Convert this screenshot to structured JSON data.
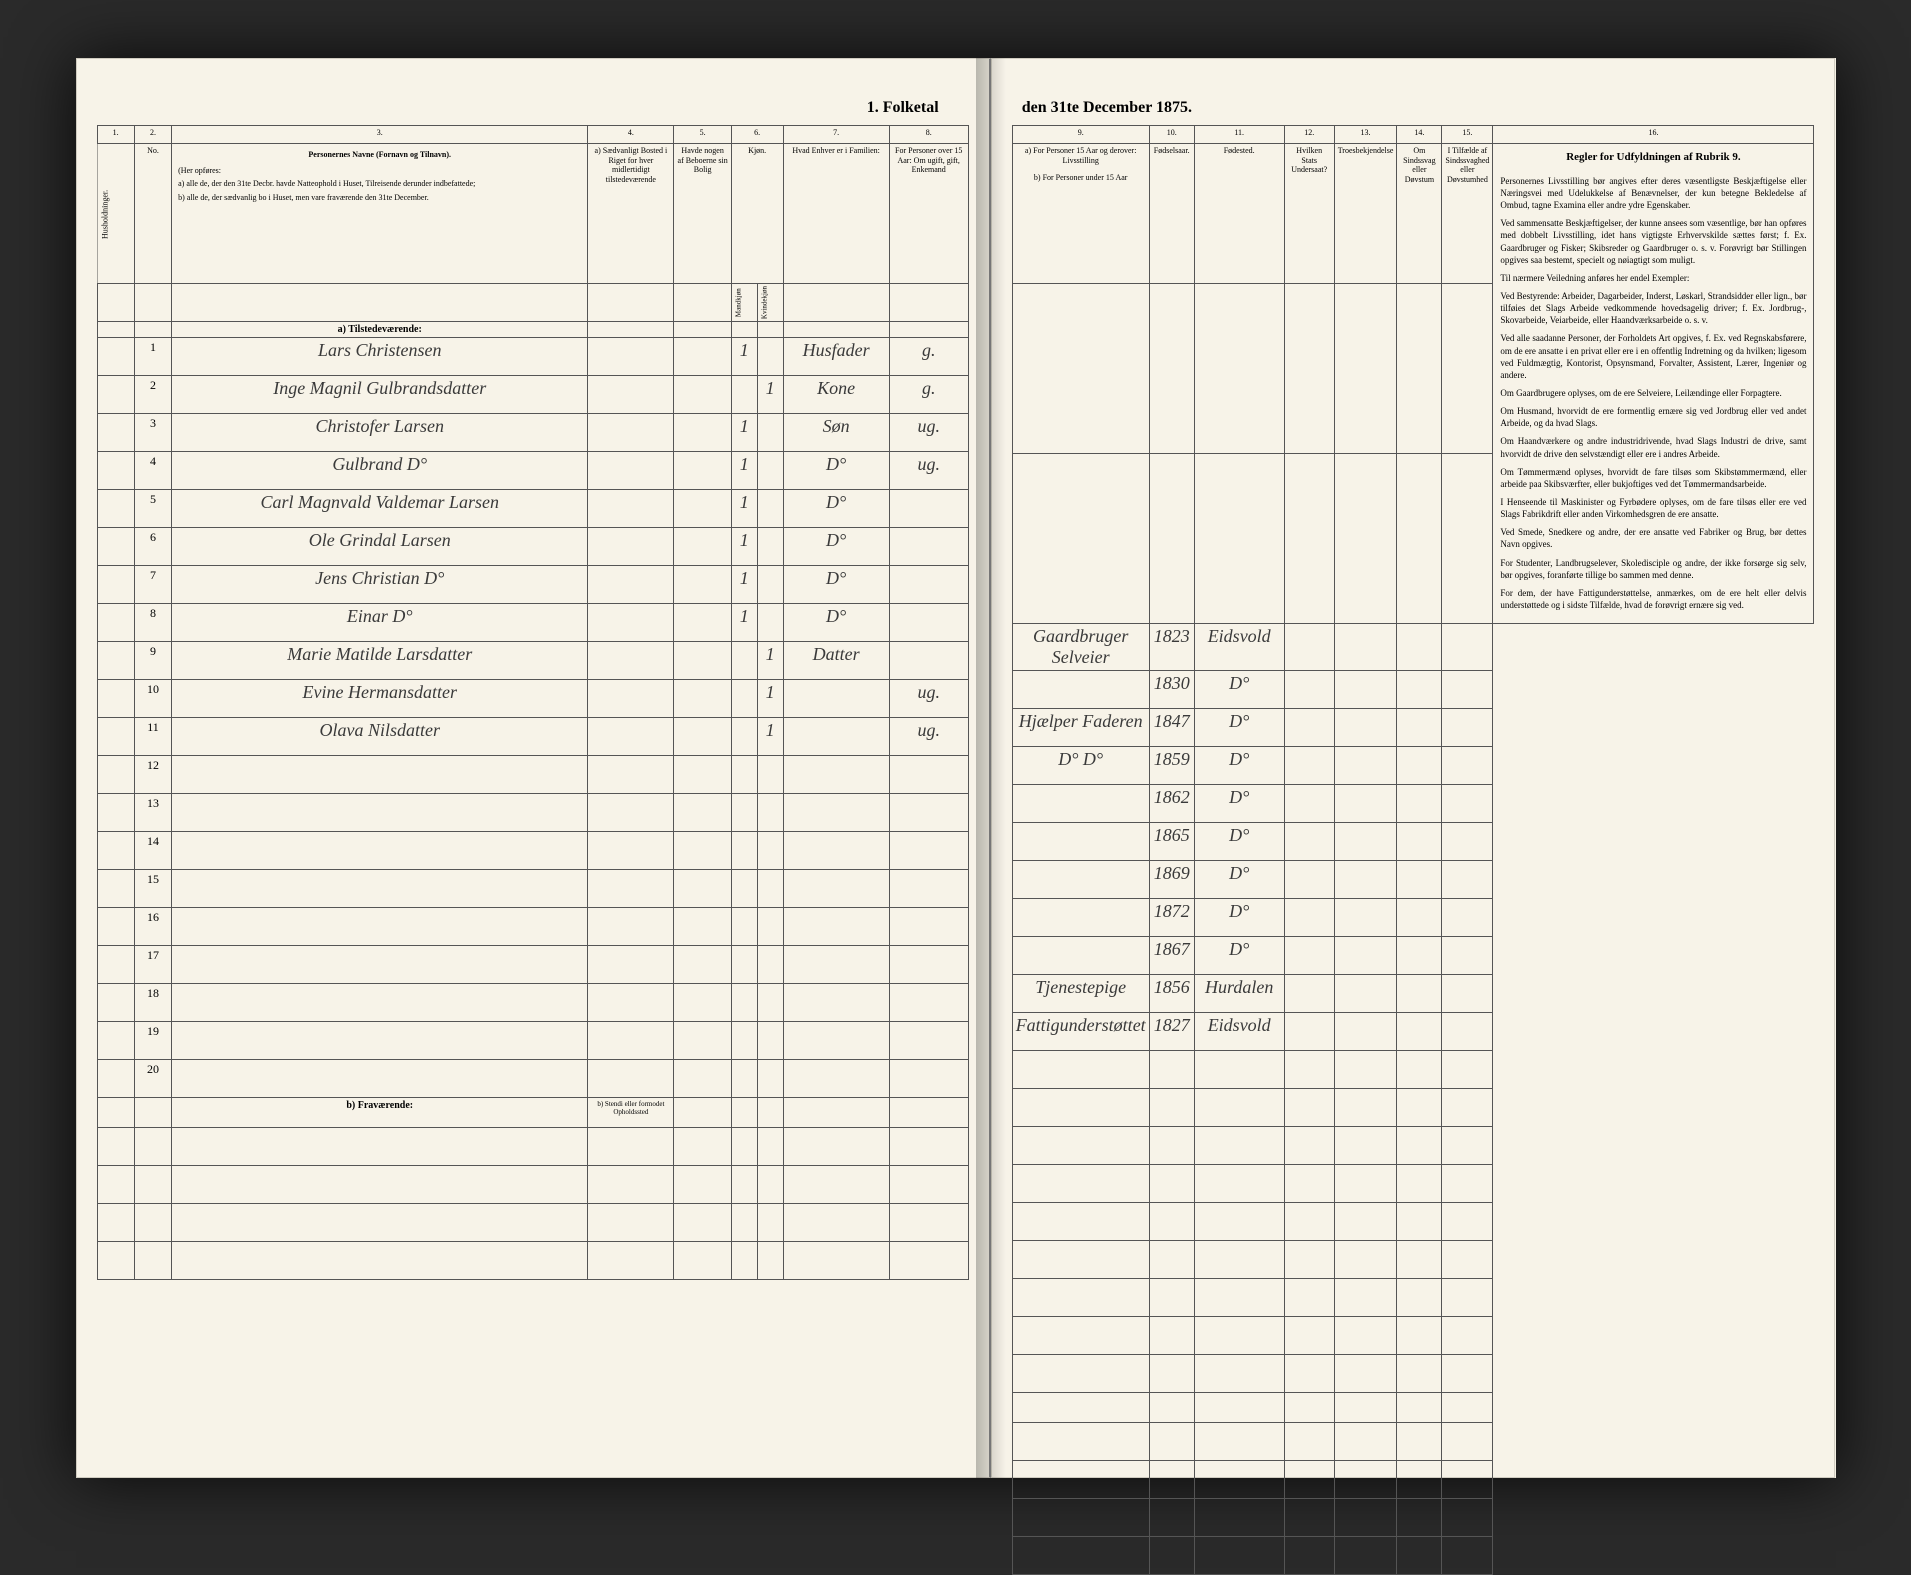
{
  "title_left": "1. Folketal",
  "title_right": "den 31te December 1875.",
  "columns_left": {
    "1": {
      "num": "1.",
      "label": "Husholdninger."
    },
    "2": {
      "num": "2.",
      "label": "No."
    },
    "3": {
      "num": "3.",
      "label": "Personernes Navne (Fornavn og Tilnavn).",
      "sub_a": "a) alle de, der den 31te Decbr. havde Natteophold i Huset, Tilreisende derunder indbefattede;",
      "sub_b": "b) alle de, der sædvanlig bo i Huset, men vare fraværende den 31te December."
    },
    "4": {
      "num": "4.",
      "label": "a) Sædvanligt Bosted i Riget for hver midlertidigt tilstedeværende"
    },
    "5": {
      "num": "5.",
      "label": "Havde nogen af Beboerne sin Bolig"
    },
    "6": {
      "num": "6.",
      "label": "Kjøn.",
      "sub1": "Mandkjøn",
      "sub2": "Kvindekjøn"
    },
    "7": {
      "num": "7.",
      "label": "Hvad Enhver er i Familien:"
    },
    "8": {
      "num": "8.",
      "label": "For Personer over 15 Aar: Om ugift, gift, Enkemand"
    }
  },
  "columns_right": {
    "9": {
      "num": "9.",
      "label": "a) For Personer 15 Aar og derover: Livsstilling",
      "sub": "b) For Personer under 15 Aar"
    },
    "10": {
      "num": "10.",
      "label": "Fødselsaar."
    },
    "11": {
      "num": "11.",
      "label": "Fødested."
    },
    "12": {
      "num": "12.",
      "label": "Hvilken Stats Undersaat?"
    },
    "13": {
      "num": "13.",
      "label": "Troesbekjendelse"
    },
    "14": {
      "num": "14.",
      "label": "Om Sindssvag eller Døvstum"
    },
    "15": {
      "num": "15.",
      "label": "I Tilfælde af Sindssvaghed eller Døvstumhed"
    },
    "16": {
      "num": "16.",
      "label": "Regler for Udfyldningen af Rubrik 9."
    }
  },
  "section_a": "a) Tilstedeværende:",
  "section_b": "b) Fraværende:",
  "section_b_col4": "b) Stendi eller formodet Opholdssted",
  "rows": [
    {
      "n": "1",
      "name": "Lars Christensen",
      "m": "1",
      "f": "",
      "rel": "Husfader",
      "stat": "g.",
      "occ": "Gaardbruger Selveier",
      "year": "1823",
      "place": "Eidsvold"
    },
    {
      "n": "2",
      "name": "Inge Magnil Gulbrandsdatter",
      "m": "",
      "f": "1",
      "rel": "Kone",
      "stat": "g.",
      "occ": "",
      "year": "1830",
      "place": "D°"
    },
    {
      "n": "3",
      "name": "Christofer Larsen",
      "m": "1",
      "f": "",
      "rel": "Søn",
      "stat": "ug.",
      "occ": "Hjælper Faderen",
      "year": "1847",
      "place": "D°"
    },
    {
      "n": "4",
      "name": "Gulbrand D°",
      "m": "1",
      "f": "",
      "rel": "D°",
      "stat": "ug.",
      "occ": "D°     D°",
      "year": "1859",
      "place": "D°"
    },
    {
      "n": "5",
      "name": "Carl Magnvald Valdemar Larsen",
      "m": "1",
      "f": "",
      "rel": "D°",
      "stat": "",
      "occ": "",
      "year": "1862",
      "place": "D°"
    },
    {
      "n": "6",
      "name": "Ole Grindal Larsen",
      "m": "1",
      "f": "",
      "rel": "D°",
      "stat": "",
      "occ": "",
      "year": "1865",
      "place": "D°"
    },
    {
      "n": "7",
      "name": "Jens Christian D°",
      "m": "1",
      "f": "",
      "rel": "D°",
      "stat": "",
      "occ": "",
      "year": "1869",
      "place": "D°"
    },
    {
      "n": "8",
      "name": "Einar D°",
      "m": "1",
      "f": "",
      "rel": "D°",
      "stat": "",
      "occ": "",
      "year": "1872",
      "place": "D°"
    },
    {
      "n": "9",
      "name": "Marie Matilde Larsdatter",
      "m": "",
      "f": "1",
      "rel": "Datter",
      "stat": "",
      "occ": "",
      "year": "1867",
      "place": "D°"
    },
    {
      "n": "10",
      "name": "Evine Hermansdatter",
      "m": "",
      "f": "1",
      "rel": "",
      "stat": "ug.",
      "occ": "Tjenestepige",
      "year": "1856",
      "place": "Hurdalen"
    },
    {
      "n": "11",
      "name": "Olava Nilsdatter",
      "m": "",
      "f": "1",
      "rel": "",
      "stat": "ug.",
      "occ": "Fattigunderstøttet",
      "year": "1827",
      "place": "Eidsvold"
    }
  ],
  "empty_rows_a": [
    "12",
    "13",
    "14",
    "15",
    "16",
    "17",
    "18",
    "19",
    "20"
  ],
  "instructions": {
    "header": "Personernes Livsstilling bør angives efter deres væsentligste Beskjæftigelse eller Næringsvei med Udelukkelse af Benævnelser, der kun betegne Bekledelse af Ombud, tagne Examina eller andre ydre Egenskaber.",
    "p1": "Ved sammensatte Beskjæftigelser, der kunne ansees som væsentlige, bør han opføres med dobbelt Livsstilling, idet hans vigtigste Erhvervskilde sættes først; f. Ex. Gaardbruger og Fisker; Skibsreder og Gaardbruger o. s. v. Forøvrigt bør Stillingen opgives saa bestemt, specielt og nøiagtigt som muligt.",
    "p2": "Til nærmere Veiledning anføres her endel Exempler:",
    "p3": "Ved Bestyrende: Arbeider, Dagarbeider, Inderst, Løskarl, Strandsidder eller lign., bør tilføies det Slags Arbeide vedkommende hovedsagelig driver; f. Ex. Jordbrug-, Skovarbeide, Veiarbeide, eller Haandværksarbeide o. s. v.",
    "p4": "Ved alle saadanne Personer, der Forholdets Art opgives, f. Ex. ved Regnskabsførere, om de ere ansatte i en privat eller ere i en offentlig Indretning og da hvilken; ligesom ved Fuldmægtig, Kontorist, Opsynsmand, Forvalter, Assistent, Lærer, Ingeniør og andere.",
    "p5": "Om Gaardbrugere oplyses, om de ere Selveiere, Leilændinge eller Forpagtere.",
    "p6": "Om Husmand, hvorvidt de ere formentlig ernære sig ved Jordbrug eller ved andet Arbeide, og da hvad Slags.",
    "p7": "Om Haandværkere og andre industridrivende, hvad Slags Industri de drive, samt hvorvidt de drive den selvstændigt eller ere i andres Arbeide.",
    "p8": "Om Tømmermænd oplyses, hvorvidt de fare tilsøs som Skibstømmermænd, eller arbeide paa Skibsværfter, eller bukjoftiges ved det Tømmermandsarbeide.",
    "p9": "I Henseende til Maskinister og Fyrbødere oplyses, om de fare tilsøs eller ere ved Slags Fabrikdrift eller anden Virkomhedsgren de ere ansatte.",
    "p10": "Ved Smede, Snedkere og andre, der ere ansatte ved Fabriker og Brug, bør dettes Navn opgives.",
    "p11": "For Studenter, Landbrugselever, Skoledisciple og andre, der ikke forsørge sig selv, bør opgives, foranførte tillige bo sammen med denne.",
    "p12": "For dem, der have Fattigunderstøttelse, anmærkes, om de ere helt eller delvis understøttede og i sidste Tilfælde, hvad de forøvrigt ernære sig ved."
  }
}
